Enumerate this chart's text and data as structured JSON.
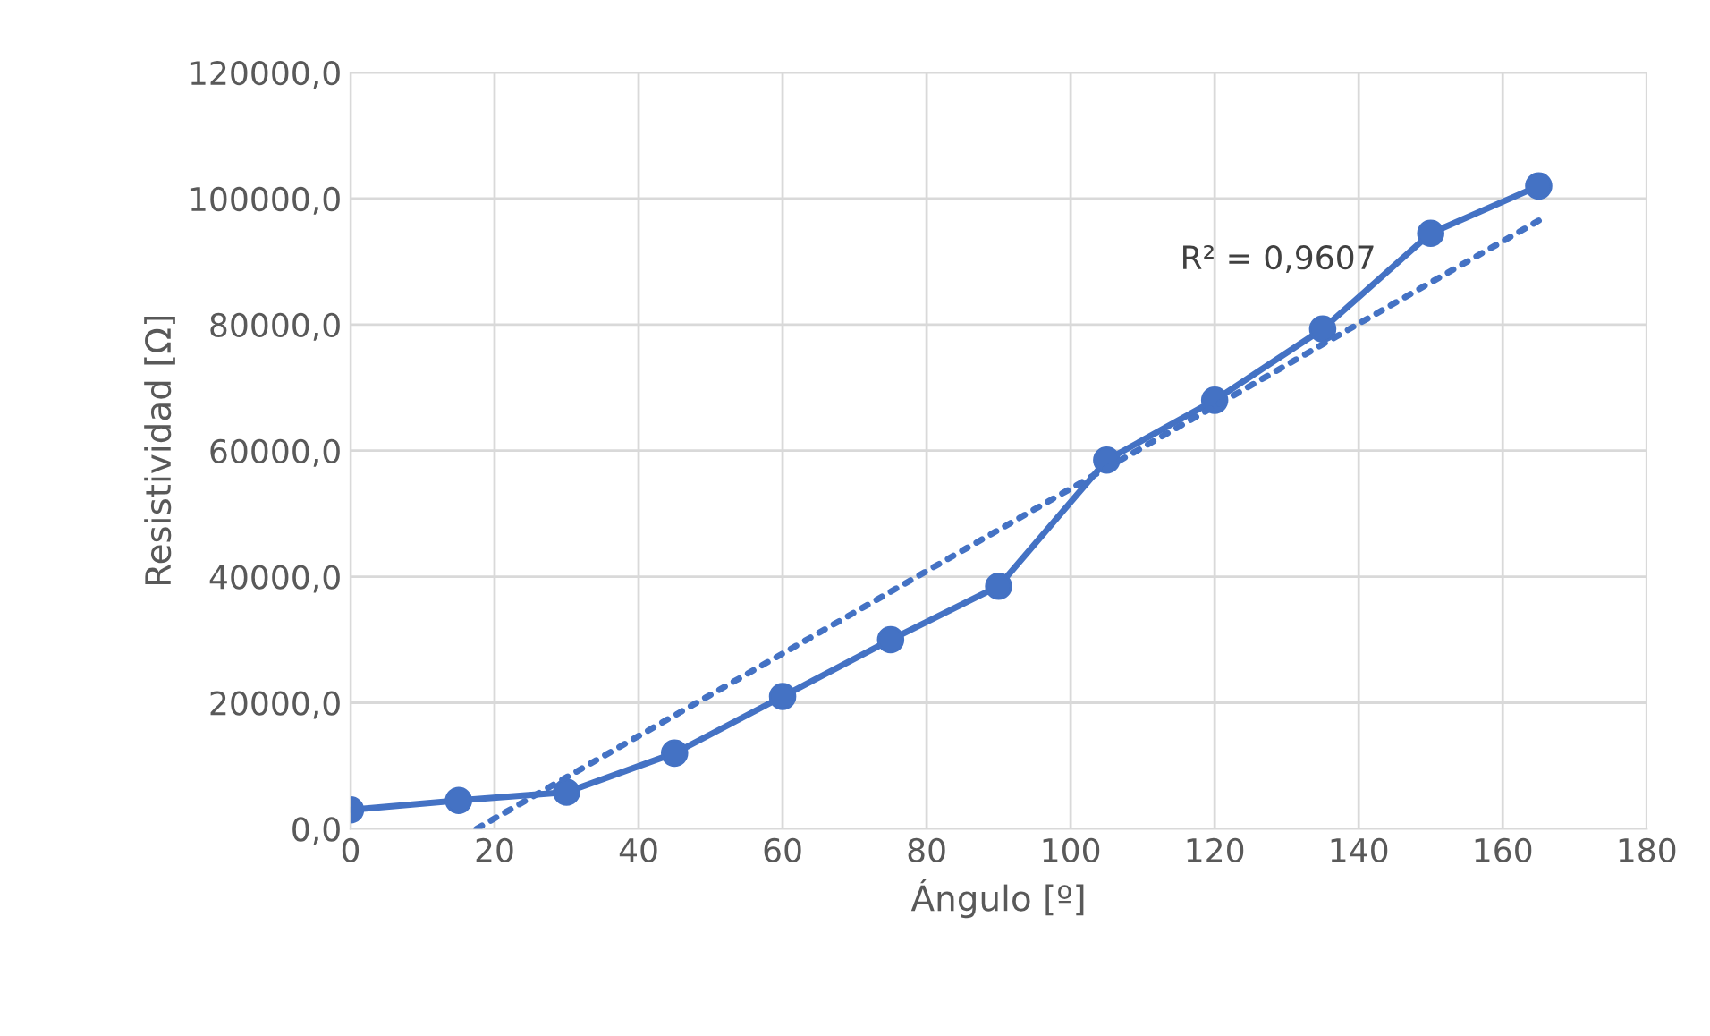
{
  "chart_data": {
    "type": "line",
    "xlabel": "Ángulo [º]",
    "ylabel": "Resistividad [Ω]",
    "x": [
      0,
      15,
      30,
      45,
      60,
      75,
      90,
      105,
      120,
      135,
      150,
      165
    ],
    "series": [
      {
        "color": "#4472c4",
        "values": [
          3000,
          4500,
          5800,
          12000,
          21000,
          30000,
          38500,
          58500,
          68000,
          79300,
          94500,
          102000
        ],
        "marker": "circle",
        "line_style": "solid"
      },
      {
        "color": "#4472c4",
        "x": [
          17.5,
          165
        ],
        "values": [
          0,
          96500
        ],
        "marker": "none",
        "line_style": "dotted"
      }
    ],
    "annotations": [
      "R² = 0,9607"
    ],
    "xlim": [
      0,
      180
    ],
    "xticks": [
      0,
      20,
      40,
      60,
      80,
      100,
      120,
      140,
      160,
      180
    ],
    "ylim": [
      0,
      120000
    ],
    "yticks": [
      {
        "value": 0,
        "label": "0,0"
      },
      {
        "value": 20000,
        "label": "20000,0"
      },
      {
        "value": 40000,
        "label": "40000,0"
      },
      {
        "value": 60000,
        "label": "60000,0"
      },
      {
        "value": 80000,
        "label": "80000,0"
      },
      {
        "value": 100000,
        "label": "100000,0"
      },
      {
        "value": 120000,
        "label": "120000,0"
      }
    ],
    "grid": true
  }
}
